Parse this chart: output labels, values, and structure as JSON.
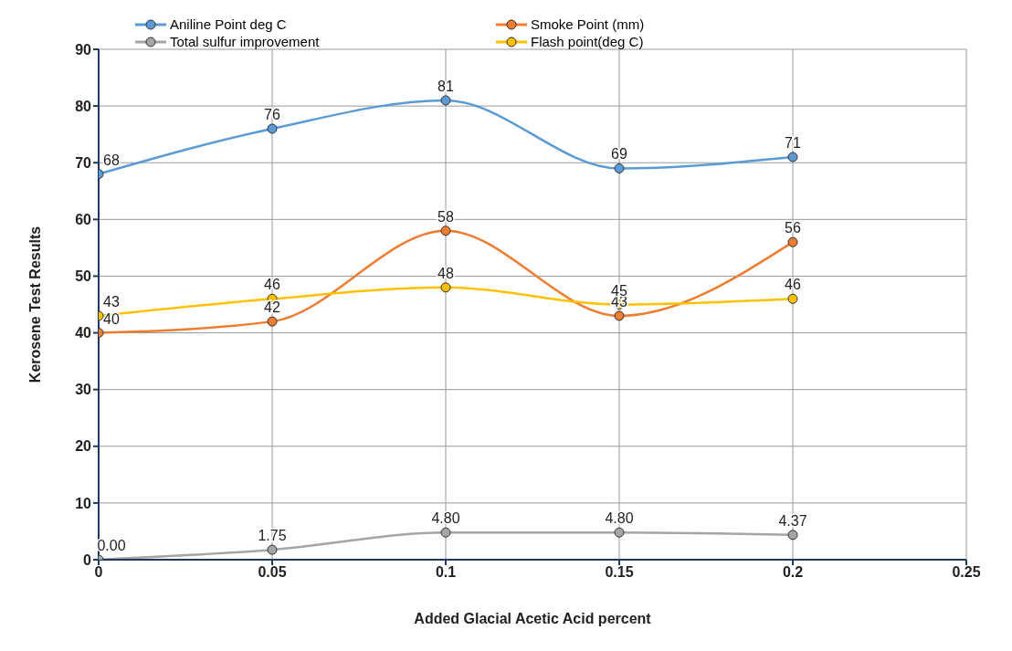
{
  "chart_data": {
    "type": "line",
    "xlabel": "Added Glacial Acetic Acid percent",
    "ylabel": "Kerosene Test Results",
    "x": [
      0,
      0.05,
      0.1,
      0.15,
      0.2
    ],
    "series": [
      {
        "name": "Aniline Point deg C",
        "color": "#5b9bd5",
        "values": [
          68,
          76,
          81,
          69,
          71
        ],
        "value_labels": [
          "68",
          "76",
          "81",
          "69",
          "71"
        ]
      },
      {
        "name": "Smoke Point (mm)",
        "color": "#ed7d31",
        "values": [
          40,
          42,
          58,
          43,
          56
        ],
        "value_labels": [
          "40",
          "42",
          "58",
          "43",
          "56"
        ]
      },
      {
        "name": "Total sulfur improvement",
        "color": "#a5a5a5",
        "values": [
          0,
          1.75,
          4.8,
          4.8,
          4.37
        ],
        "value_labels": [
          "0.00",
          "1.75",
          "4.80",
          "4.80",
          "4.37"
        ]
      },
      {
        "name": "Flash point(deg C)",
        "color": "#ffc000",
        "values": [
          43,
          46,
          48,
          45,
          46
        ],
        "value_labels": [
          "43",
          "46",
          "48",
          "45",
          "46"
        ]
      }
    ],
    "xlim": [
      0,
      0.25
    ],
    "xticks": [
      0,
      0.05,
      0.1,
      0.15,
      0.2,
      0.25
    ],
    "ylim": [
      0,
      90
    ],
    "yticks": [
      0,
      10,
      20,
      30,
      40,
      50,
      60,
      70,
      80,
      90
    ],
    "grid": true,
    "legend": "top",
    "marker": "circle",
    "line_style": "solid"
  }
}
